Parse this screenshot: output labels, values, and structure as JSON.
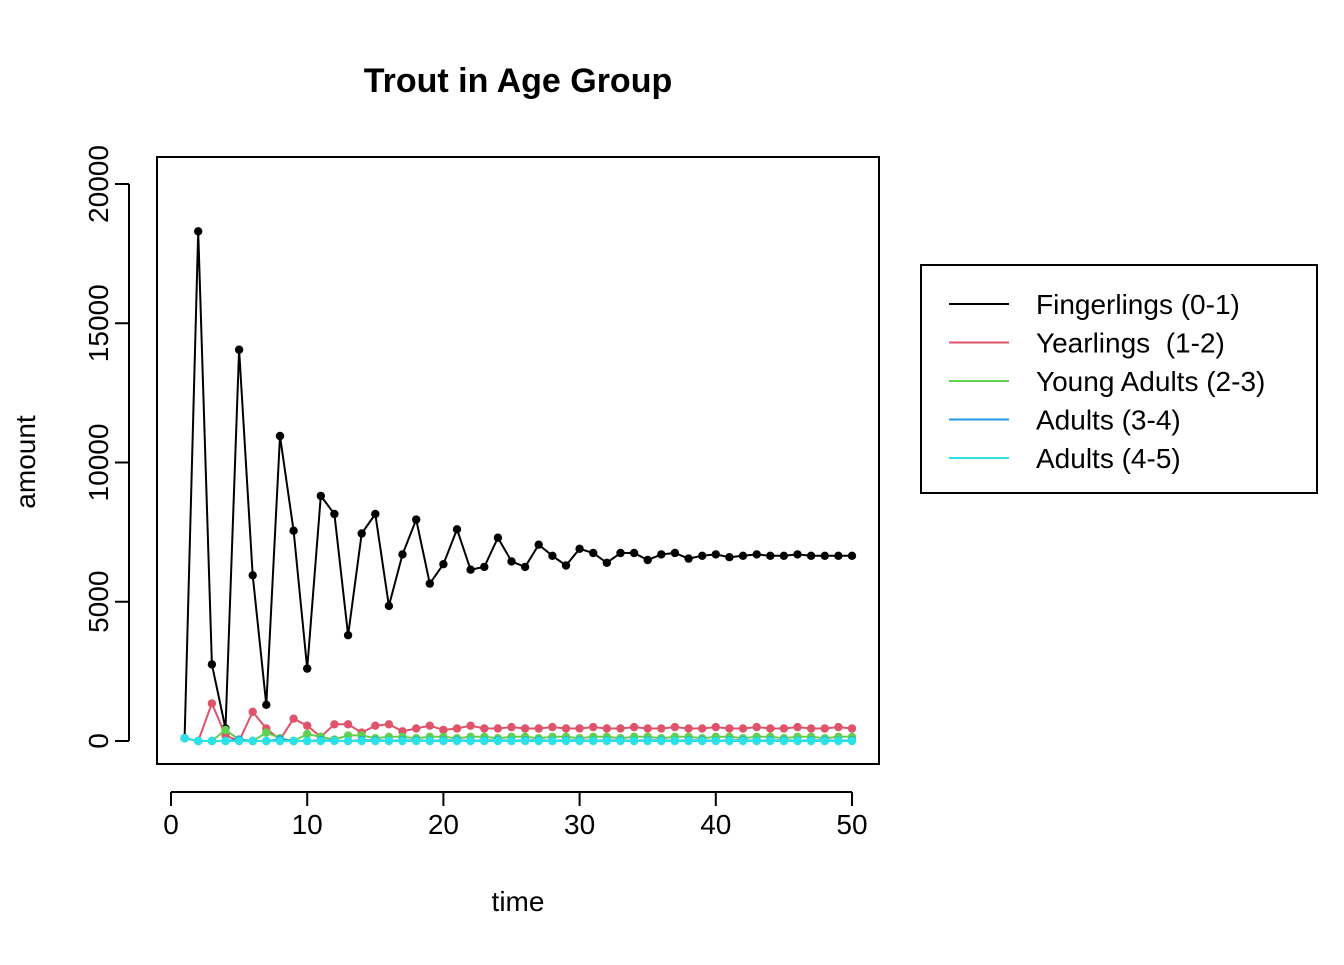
{
  "chart_data": {
    "type": "line",
    "title": "Trout in Age Group",
    "xlabel": "time",
    "ylabel": "amount",
    "xlim": [
      0,
      52
    ],
    "ylim": [
      0,
      20000
    ],
    "xticks": [
      "0",
      "10",
      "20",
      "30",
      "40",
      "50"
    ],
    "yticks": [
      "0",
      "5000",
      "10000",
      "15000",
      "20000"
    ],
    "grid": false,
    "legend_position": "right",
    "x": [
      1,
      2,
      3,
      4,
      5,
      6,
      7,
      8,
      9,
      10,
      11,
      12,
      13,
      14,
      15,
      16,
      17,
      18,
      19,
      20,
      21,
      22,
      23,
      24,
      25,
      26,
      27,
      28,
      29,
      30,
      31,
      32,
      33,
      34,
      35,
      36,
      37,
      38,
      39,
      40,
      41,
      42,
      43,
      44,
      45,
      46,
      47,
      48,
      49,
      50
    ],
    "series": [
      {
        "name": "Fingerlings (0-1)",
        "color": "#000000",
        "values": [
          100,
          18300,
          2750,
          450,
          14050,
          5950,
          1300,
          10950,
          7550,
          2600,
          8800,
          8150,
          3800,
          7450,
          8150,
          4850,
          6700,
          7950,
          5650,
          6350,
          7600,
          6150,
          6250,
          7300,
          6450,
          6250,
          7050,
          6650,
          6300,
          6900,
          6750,
          6400,
          6750,
          6750,
          6500,
          6700,
          6750,
          6550,
          6650,
          6700,
          6600,
          6650,
          6700,
          6650,
          6650,
          6700,
          6650,
          6650,
          6650,
          6650
        ]
      },
      {
        "name": "Yearlings  (1-2)",
        "color": "#DF536B",
        "values": [
          100,
          0,
          1350,
          200,
          0,
          1050,
          450,
          50,
          800,
          550,
          150,
          600,
          600,
          300,
          550,
          600,
          350,
          450,
          550,
          400,
          450,
          550,
          450,
          450,
          500,
          450,
          450,
          500,
          450,
          450,
          500,
          450,
          450,
          500,
          450,
          450,
          500,
          450,
          450,
          500,
          450,
          450,
          500,
          450,
          450,
          500,
          450,
          450,
          500,
          450
        ]
      },
      {
        "name": "Young Adults (2-3)",
        "color": "#61D04F",
        "values": [
          100,
          0,
          0,
          400,
          50,
          0,
          300,
          100,
          0,
          250,
          150,
          50,
          200,
          200,
          100,
          150,
          150,
          100,
          150,
          150,
          100,
          150,
          150,
          100,
          150,
          150,
          100,
          150,
          150,
          100,
          150,
          150,
          100,
          150,
          150,
          100,
          150,
          150,
          100,
          150,
          150,
          100,
          150,
          150,
          100,
          150,
          150,
          100,
          150,
          150
        ]
      },
      {
        "name": "Adults (3-4)",
        "color": "#2297E6",
        "values": [
          100,
          0,
          0,
          0,
          50,
          0,
          0,
          50,
          0,
          0,
          30,
          10,
          0,
          30,
          20,
          10,
          20,
          20,
          10,
          20,
          20,
          10,
          20,
          20,
          10,
          20,
          20,
          10,
          20,
          20,
          10,
          20,
          20,
          10,
          20,
          20,
          10,
          20,
          20,
          10,
          20,
          20,
          10,
          20,
          20,
          10,
          20,
          20,
          10,
          20
        ]
      },
      {
        "name": "Adults (4-5)",
        "color": "#28E2E5",
        "values": [
          100,
          0,
          0,
          0,
          0,
          0,
          0,
          0,
          0,
          0,
          0,
          0,
          0,
          0,
          0,
          0,
          0,
          0,
          0,
          0,
          0,
          0,
          0,
          0,
          0,
          0,
          0,
          0,
          0,
          0,
          0,
          0,
          0,
          0,
          0,
          0,
          0,
          0,
          0,
          0,
          0,
          0,
          0,
          0,
          0,
          0,
          0,
          0,
          0,
          0
        ]
      }
    ]
  }
}
